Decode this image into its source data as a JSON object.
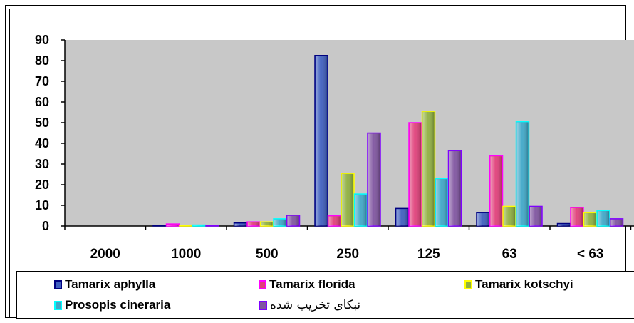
{
  "chart_data": {
    "type": "bar",
    "y_ticks": [
      "0",
      "10",
      "20",
      "30",
      "40",
      "50",
      "60",
      "70",
      "80",
      "90"
    ],
    "ylim": [
      0,
      90
    ],
    "grid": false,
    "legend_position": "bottom",
    "categories": [
      "2000",
      "1000",
      "500",
      "250",
      "125",
      "63",
      "< 63"
    ],
    "series": [
      {
        "name": "Tamarix aphylla",
        "color": "#3f5fbf",
        "edge": "#000080",
        "values": [
          0,
          0.3,
          1.5,
          82.5,
          8.5,
          6.5,
          1.2
        ]
      },
      {
        "name": "Tamarix florida",
        "color": "#e0407a",
        "edge": "#ff00ff",
        "values": [
          0,
          1.0,
          2.0,
          5.0,
          50.0,
          34.0,
          9.0
        ]
      },
      {
        "name": "Tamarix kotschyi",
        "color": "#90b040",
        "edge": "#ffff00",
        "values": [
          0,
          0.4,
          2.0,
          25.5,
          55.5,
          9.5,
          6.5
        ]
      },
      {
        "name": "Prosopis cineraria",
        "color": "#40a8c8",
        "edge": "#00ffff",
        "values": [
          0,
          0.5,
          3.5,
          15.5,
          23.0,
          50.5,
          7.5
        ]
      },
      {
        "name": "نبکای تخریب شده",
        "color": "#8055a0",
        "edge": "#8000ff",
        "values": [
          0,
          0.2,
          5.2,
          45.0,
          36.5,
          9.5,
          3.5
        ]
      }
    ]
  }
}
